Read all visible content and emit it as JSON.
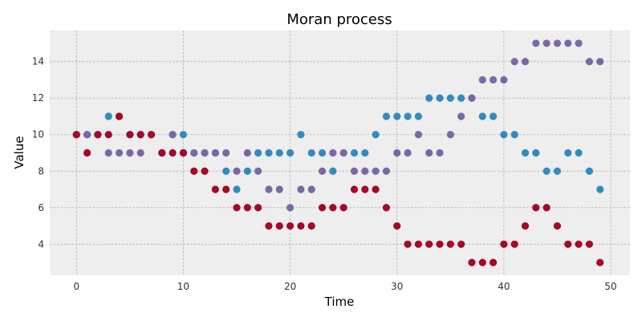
{
  "chart_data": {
    "type": "scatter",
    "title": "Moran process",
    "xlabel": "Time",
    "ylabel": "Value",
    "xlim": [
      -2.5,
      51.8
    ],
    "ylim": [
      2.3,
      15.7
    ],
    "xticks": [
      0,
      10,
      20,
      30,
      40,
      50
    ],
    "yticks": [
      4,
      6,
      8,
      10,
      12,
      14
    ],
    "grid": true,
    "legend": false,
    "colors": {
      "background": "#eeeeee",
      "grid": "#b0b0b0",
      "red": "#a60628",
      "blue": "#348abd",
      "purple": "#7a68a6"
    },
    "x": [
      0,
      1,
      2,
      3,
      4,
      5,
      6,
      7,
      8,
      9,
      10,
      11,
      12,
      13,
      14,
      15,
      16,
      17,
      18,
      19,
      20,
      21,
      22,
      23,
      24,
      25,
      26,
      27,
      28,
      29,
      30,
      31,
      32,
      33,
      34,
      35,
      36,
      37,
      38,
      39,
      40,
      41,
      42,
      43,
      44,
      45,
      46,
      47,
      48,
      49
    ],
    "series": [
      {
        "color": "blue",
        "values": [
          10,
          10,
          10,
          11,
          11,
          10,
          10,
          10,
          9,
          10,
          10,
          9,
          9,
          9,
          8,
          7,
          8,
          9,
          9,
          9,
          9,
          10,
          9,
          9,
          8,
          9,
          9,
          9,
          10,
          11,
          11,
          11,
          11,
          12,
          12,
          12,
          12,
          12,
          11,
          11,
          10,
          10,
          9,
          9,
          8,
          8,
          9,
          9,
          8,
          7
        ]
      },
      {
        "color": "purple",
        "values": [
          10,
          10,
          10,
          9,
          9,
          9,
          9,
          10,
          9,
          10,
          9,
          9,
          9,
          9,
          9,
          8,
          9,
          8,
          7,
          7,
          6,
          7,
          7,
          8,
          9,
          9,
          8,
          8,
          8,
          8,
          9,
          9,
          10,
          9,
          9,
          10,
          11,
          12,
          13,
          13,
          13,
          14,
          14,
          15,
          15,
          15,
          15,
          15,
          14,
          14
        ]
      },
      {
        "color": "red",
        "values": [
          10,
          9,
          10,
          10,
          11,
          10,
          10,
          10,
          9,
          9,
          9,
          8,
          8,
          7,
          7,
          6,
          6,
          6,
          5,
          5,
          5,
          5,
          5,
          6,
          6,
          6,
          7,
          7,
          7,
          6,
          5,
          4,
          4,
          4,
          4,
          4,
          4,
          3,
          3,
          3,
          4,
          4,
          5,
          6,
          6,
          5,
          4,
          4,
          4,
          3
        ]
      }
    ]
  }
}
